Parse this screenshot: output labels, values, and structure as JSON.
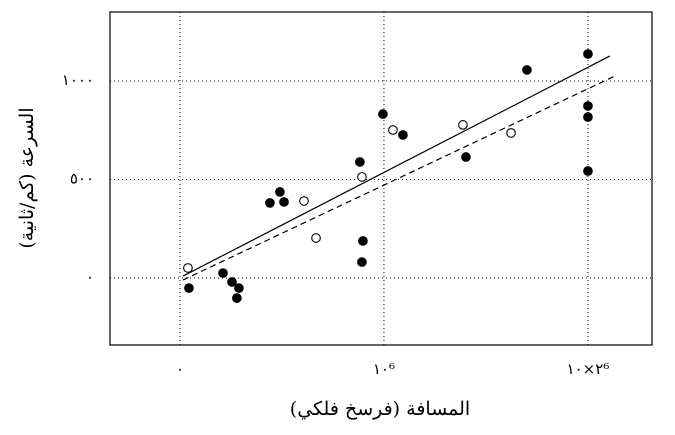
{
  "chart_data": {
    "type": "scatter",
    "x_label": "المسافة (فرسخ فلكي)",
    "y_label": "السرعة (كم/ثانية)",
    "xlim": [
      -343000,
      2314000
    ],
    "ylim": [
      -340,
      1350
    ],
    "xticks": [
      {
        "value": 0,
        "label": "٠"
      },
      {
        "value": 1000000,
        "label": "١٠⁶"
      },
      {
        "value": 2000000,
        "label": "٢×١٠⁶"
      }
    ],
    "yticks": [
      {
        "value": 0,
        "label": "٠"
      },
      {
        "value": 500,
        "label": "٥٠٠"
      },
      {
        "value": 1000,
        "label": "١٠٠٠"
      }
    ],
    "grid": true,
    "series": [
      {
        "marker": "filled",
        "color": "#000000",
        "x": [
          44000,
          211000,
          255000,
          289000,
          279000,
          441000,
          490000,
          510000,
          882000,
          897000,
          892000,
          995000,
          1093000,
          1402000,
          1701000,
          2000000,
          2000000,
          2000000,
          2000000
        ],
        "values": [
          -51,
          25,
          -20,
          -51,
          -102,
          381,
          437,
          386,
          589,
          188,
          81,
          832,
          726,
          614,
          1056,
          1137,
          873,
          817,
          543
        ]
      },
      {
        "marker": "open",
        "color": "#000000",
        "x": [
          39000,
          608000,
          667000,
          892000,
          1044000,
          1387000,
          1623000
        ],
        "values": [
          51,
          391,
          203,
          513,
          751,
          777,
          736
        ]
      }
    ],
    "lines": [
      {
        "style": "solid",
        "color": "#000000",
        "x": [
          15000,
          2108000
        ],
        "values": [
          10,
          1127
        ]
      },
      {
        "style": "dashed",
        "color": "#000000",
        "x": [
          15000,
          2132000
        ],
        "values": [
          -10,
          1025
        ]
      }
    ]
  }
}
